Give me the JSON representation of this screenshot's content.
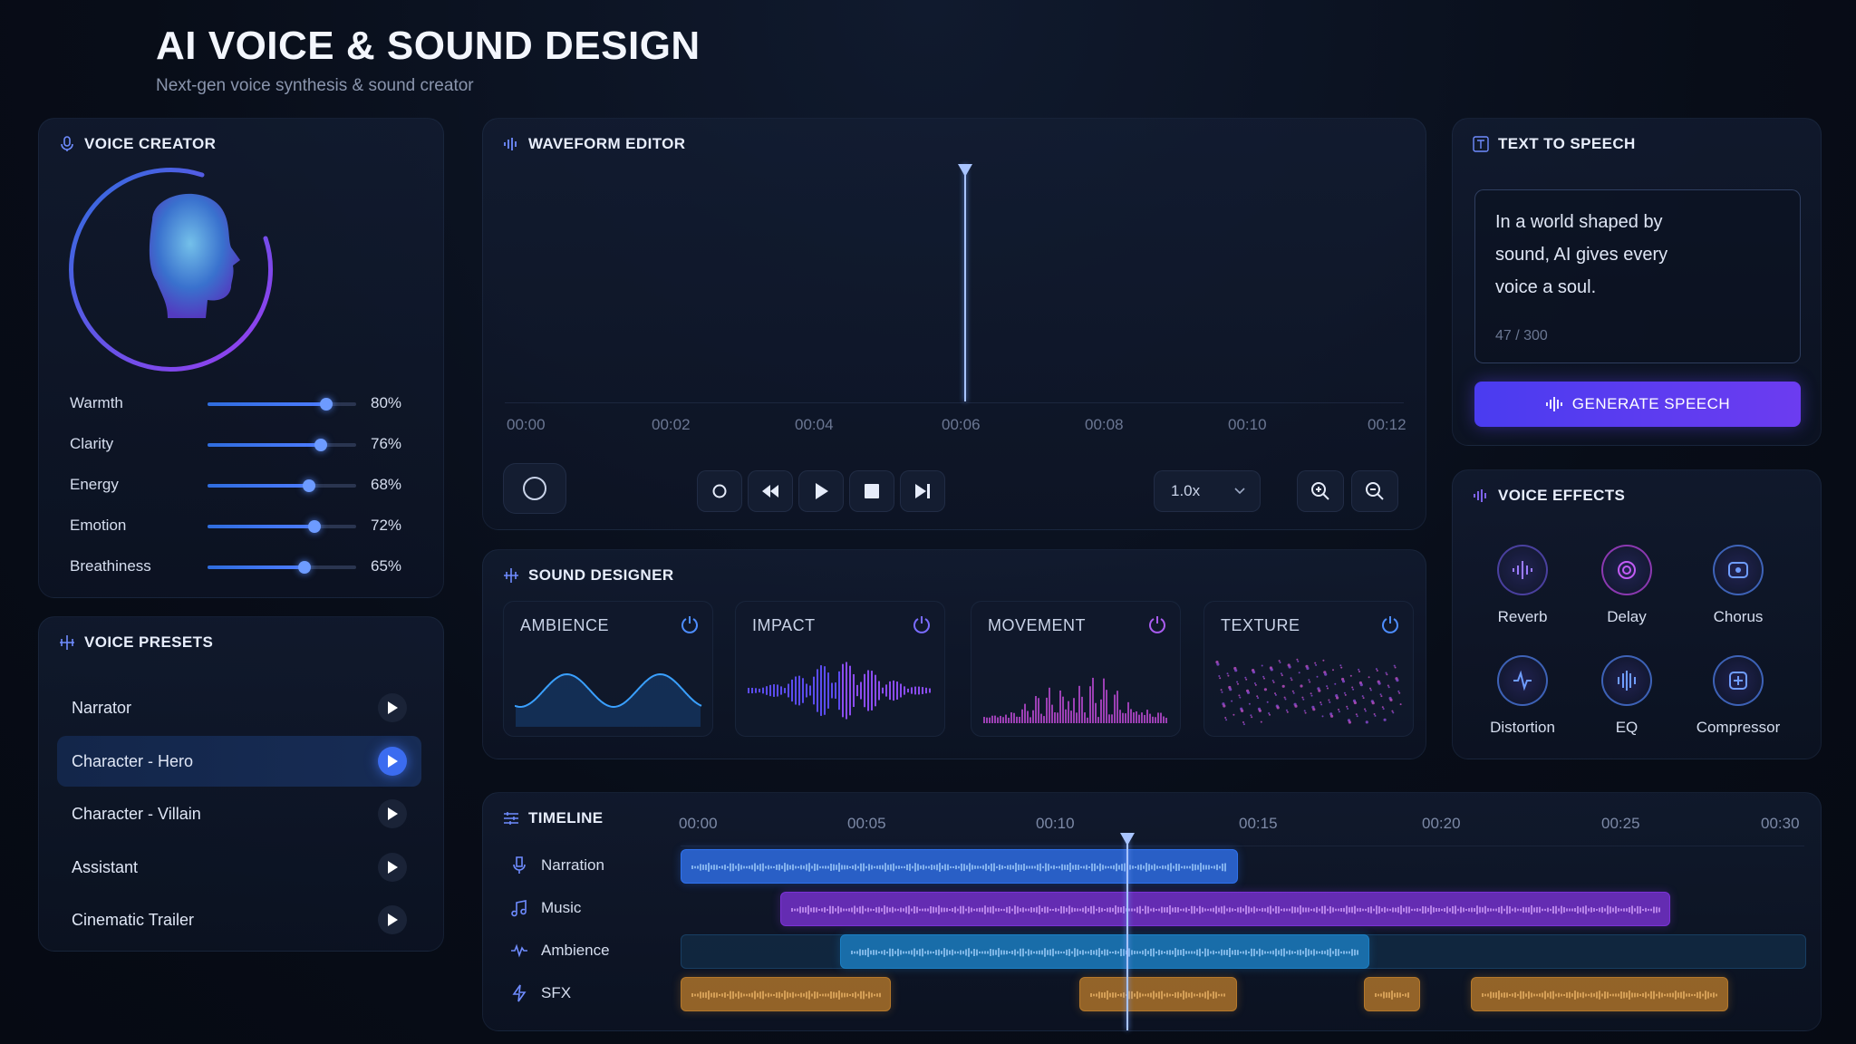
{
  "header": {
    "title": "AI VOICE & SOUND DESIGN",
    "subtitle": "Next-gen voice synthesis & sound creator"
  },
  "voice_creator": {
    "title": "VOICE CREATOR",
    "sliders": [
      {
        "label": "Warmth",
        "value": 80,
        "display": "80%"
      },
      {
        "label": "Clarity",
        "value": 76,
        "display": "76%"
      },
      {
        "label": "Energy",
        "value": 68,
        "display": "68%"
      },
      {
        "label": "Emotion",
        "value": 72,
        "display": "72%"
      },
      {
        "label": "Breathiness",
        "value": 65,
        "display": "65%"
      }
    ]
  },
  "voice_presets": {
    "title": "VOICE PRESETS",
    "items": [
      {
        "label": "Narrator",
        "active": false
      },
      {
        "label": "Character - Hero",
        "active": true
      },
      {
        "label": "Character - Villain",
        "active": false
      },
      {
        "label": "Assistant",
        "active": false
      },
      {
        "label": "Cinematic Trailer",
        "active": false
      }
    ]
  },
  "waveform_editor": {
    "title": "WAVEFORM EDITOR",
    "time_labels": [
      "00:00",
      "00:02",
      "00:04",
      "00:06",
      "00:08",
      "00:10",
      "00:12"
    ],
    "playhead_time": "00:06",
    "speed": "1.0x"
  },
  "sound_designer": {
    "title": "SOUND DESIGNER",
    "cards": [
      {
        "label": "AMBIENCE",
        "color": "#2b8fe8"
      },
      {
        "label": "IMPACT",
        "color": "#6b4cf0"
      },
      {
        "label": "MOVEMENT",
        "color": "#b64ad8"
      },
      {
        "label": "TEXTURE",
        "color": "#8a4bd6"
      }
    ]
  },
  "text_to_speech": {
    "title": "TEXT TO SPEECH",
    "text_line1": "In a world shaped by",
    "text_line2": "sound, AI gives every",
    "text_line3": "voice a soul.",
    "char_count": "47 / 300",
    "generate_label": "GENERATE SPEECH"
  },
  "voice_effects": {
    "title": "VOICE EFFECTS",
    "items": [
      {
        "label": "Reverb",
        "icon": "reverb-icon"
      },
      {
        "label": "Delay",
        "icon": "delay-icon"
      },
      {
        "label": "Chorus",
        "icon": "chorus-icon"
      },
      {
        "label": "Distortion",
        "icon": "distortion-icon"
      },
      {
        "label": "EQ",
        "icon": "eq-icon"
      },
      {
        "label": "Compressor",
        "icon": "compressor-icon"
      }
    ]
  },
  "timeline": {
    "title": "TIMELINE",
    "time_labels": [
      "00:00",
      "00:05",
      "00:10",
      "00:15",
      "00:20",
      "00:25",
      "00:30"
    ],
    "tracks": [
      {
        "label": "Narration",
        "icon": "microphone-icon",
        "color": "#2f72ee"
      },
      {
        "label": "Music",
        "icon": "music-note-icon",
        "color": "#7b32d6"
      },
      {
        "label": "Ambience",
        "icon": "waveform-icon",
        "color": "#1b7fc4"
      },
      {
        "label": "SFX",
        "icon": "lightning-icon",
        "color": "#b5782a"
      }
    ]
  },
  "colors": {
    "accent_blue": "#2f80ff",
    "accent_purple": "#a63cff",
    "background": "#080d18"
  }
}
